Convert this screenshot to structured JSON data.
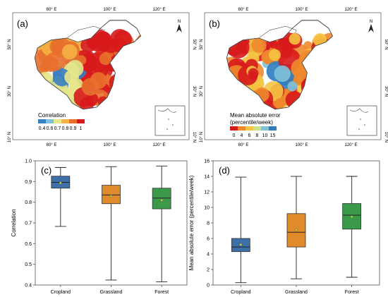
{
  "panels": {
    "a": {
      "label": "(a)",
      "lon_ticks": [
        "80° E",
        "100° E",
        "120° E"
      ],
      "lat_ticks": [
        "50° N",
        "30° N",
        "10° N"
      ],
      "north": "N",
      "legend_title": "Correlation",
      "legend_ticks": [
        "0.4",
        "0.6",
        "0.7",
        "0.8",
        "0.9",
        "1"
      ],
      "legend_colors": [
        "#3a7fbf",
        "#7fc2d9",
        "#e6e68a",
        "#f5b342",
        "#e8702c",
        "#d7191c"
      ]
    },
    "b": {
      "label": "(b)",
      "lon_ticks": [
        "80° E",
        "100° E",
        "120° E"
      ],
      "lat_ticks": [
        "50° N",
        "30° N",
        "10° N"
      ],
      "north": "N",
      "legend_title": "Mean absolute error",
      "legend_subtitle": "(percentile/week)",
      "legend_ticks": [
        "0",
        "4",
        "6",
        "8",
        "10",
        "15"
      ],
      "legend_colors": [
        "#d7191c",
        "#f08a2c",
        "#f5c542",
        "#cfe08a",
        "#7fc2d9",
        "#2f7cc0"
      ]
    },
    "c": {
      "label": "(c)",
      "chart_data": {
        "type": "box",
        "ylabel": "Correlation",
        "ylim": [
          0.4,
          1.0
        ],
        "yticks": [
          "0.4",
          "0.5",
          "0.6",
          "0.7",
          "0.8",
          "0.9",
          "1.0"
        ],
        "categories": [
          "Cropland",
          "Grassland",
          "Forest"
        ],
        "colors": [
          "#3d6fa8",
          "#e08a2c",
          "#3b9a4a"
        ],
        "boxes": [
          {
            "min": 0.683,
            "q1": 0.868,
            "median": 0.896,
            "q3": 0.926,
            "max": 0.968,
            "mean": 0.893
          },
          {
            "min": 0.424,
            "q1": 0.793,
            "median": 0.835,
            "q3": 0.882,
            "max": 0.972,
            "mean": 0.83
          },
          {
            "min": 0.415,
            "q1": 0.768,
            "median": 0.82,
            "q3": 0.868,
            "max": 0.975,
            "mean": 0.81
          }
        ]
      }
    },
    "d": {
      "label": "(d)",
      "chart_data": {
        "type": "box",
        "ylabel": "Mean absolute error (percentile/week)",
        "ylim": [
          0,
          16
        ],
        "yticks": [
          "0",
          "2",
          "4",
          "6",
          "8",
          "10",
          "12",
          "14",
          "16"
        ],
        "categories": [
          "Cropland",
          "Grassland",
          "Forest"
        ],
        "colors": [
          "#3d6fa8",
          "#e08a2c",
          "#3b9a4a"
        ],
        "boxes": [
          {
            "min": 0.3,
            "q1": 4.3,
            "median": 4.9,
            "q3": 6.0,
            "max": 13.9,
            "mean": 5.2
          },
          {
            "min": 0.8,
            "q1": 4.9,
            "median": 6.8,
            "q3": 9.2,
            "max": 14.0,
            "mean": 7.1
          },
          {
            "min": 1.0,
            "q1": 7.2,
            "median": 9.0,
            "q3": 10.5,
            "max": 14.0,
            "mean": 8.8
          }
        ]
      }
    }
  }
}
